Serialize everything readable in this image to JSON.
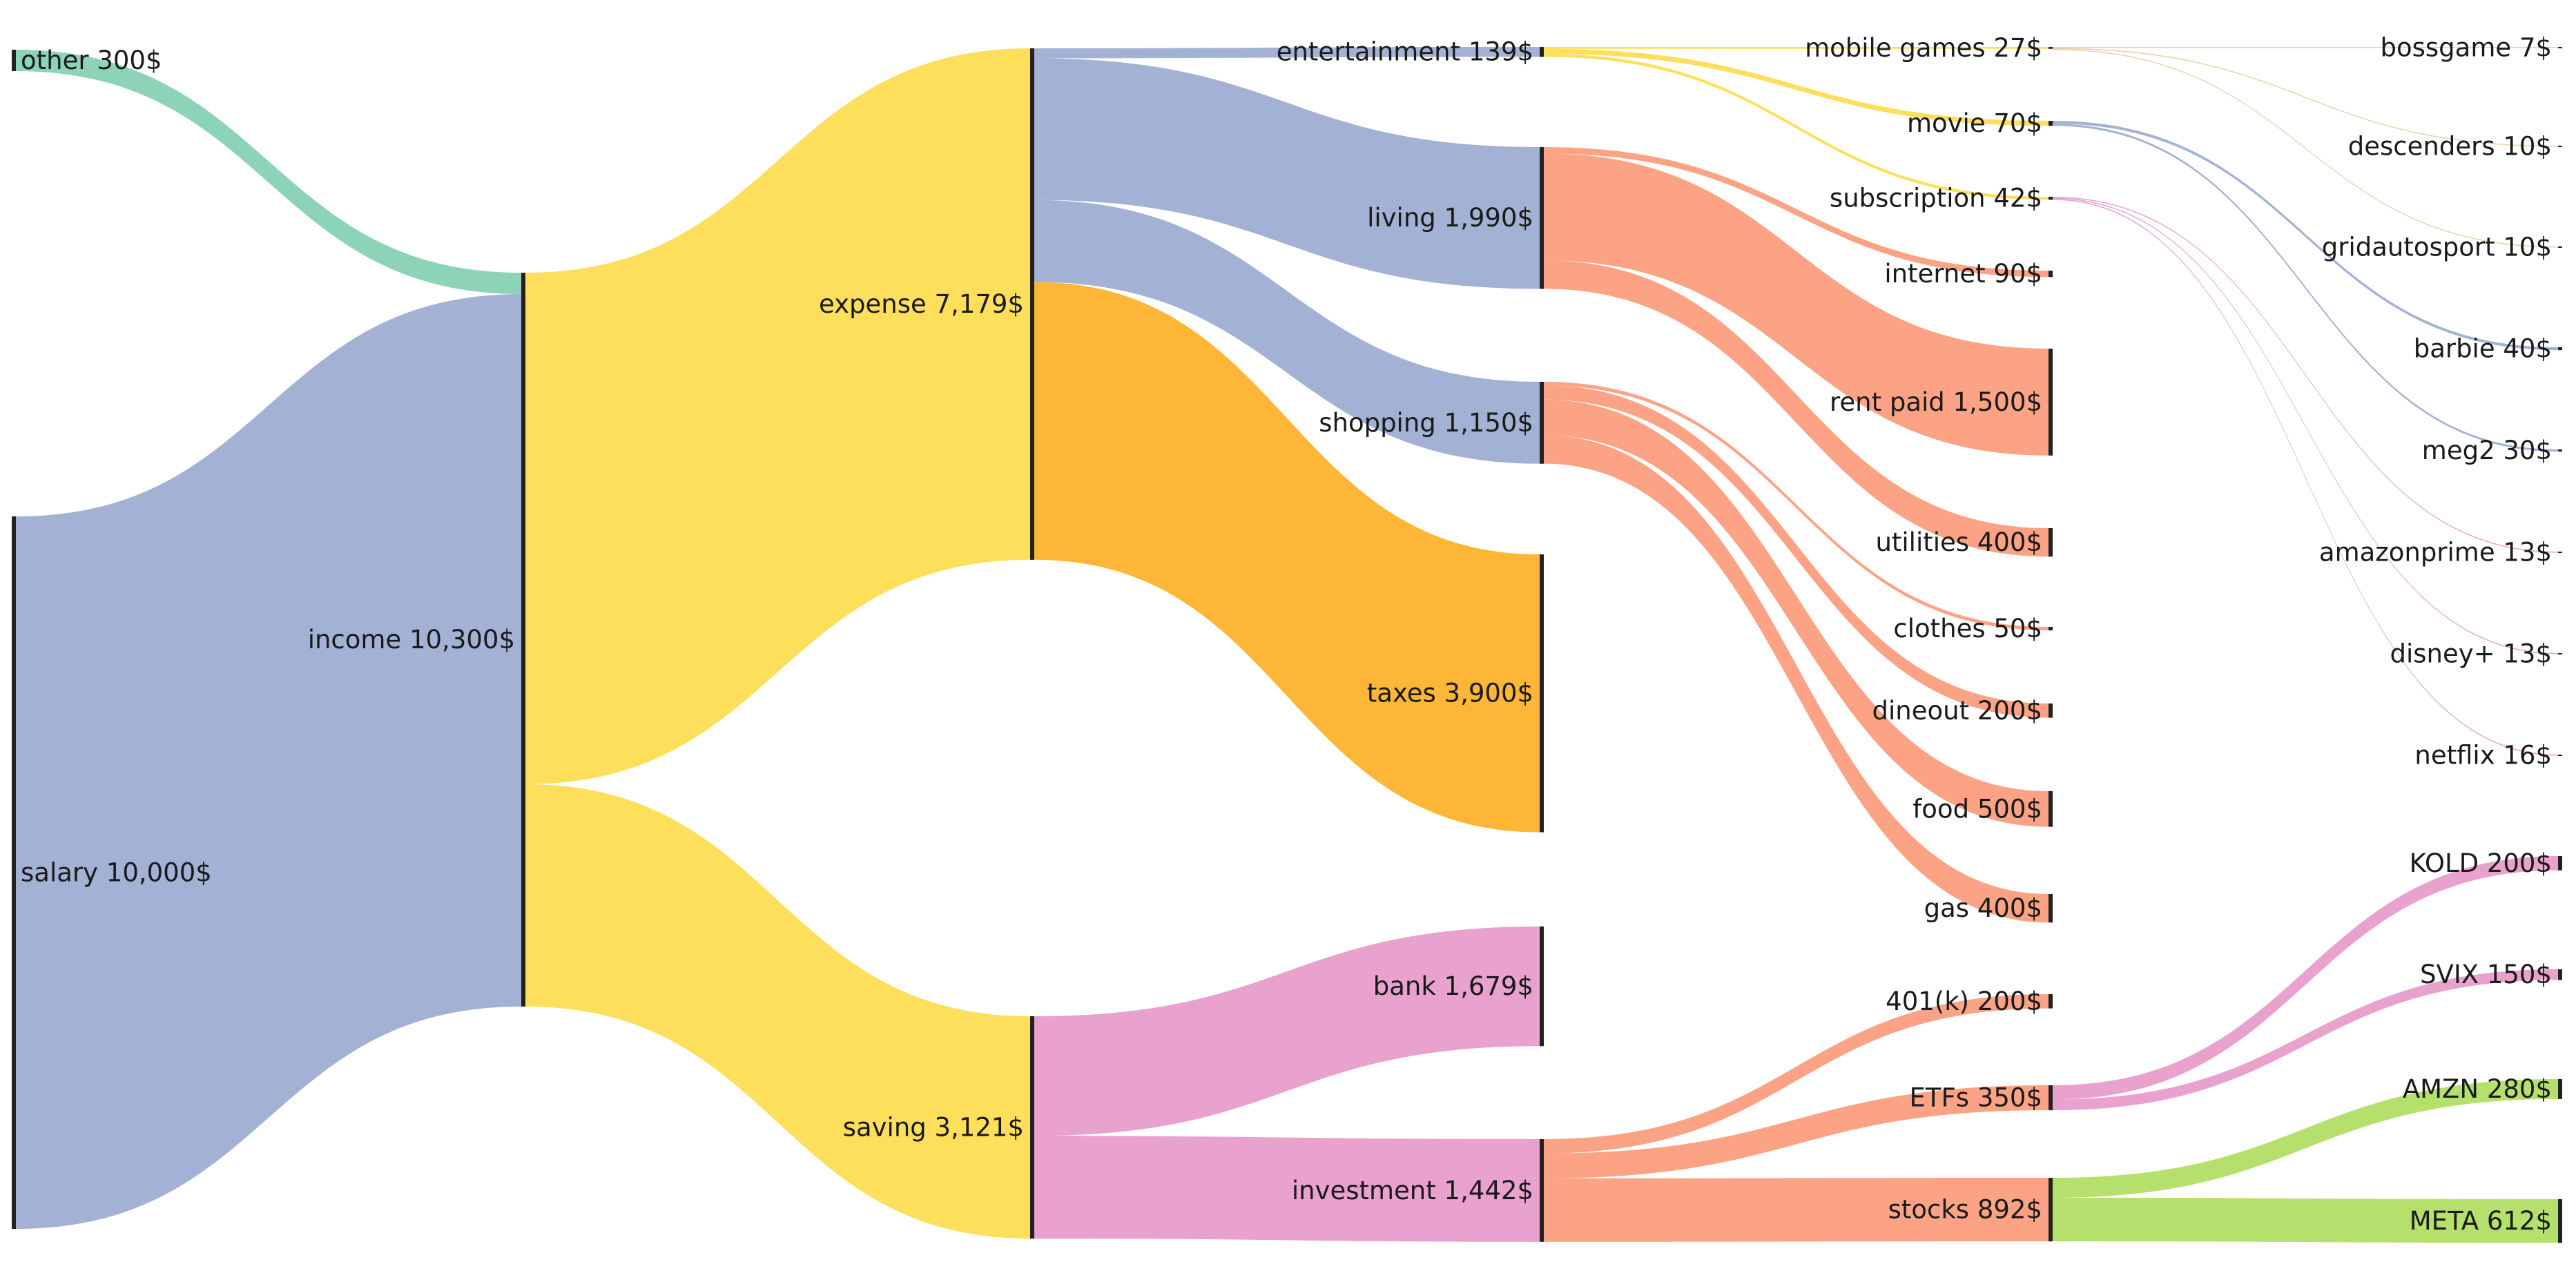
{
  "chart_data": {
    "type": "sankey",
    "unit": "$",
    "nodes": [
      {
        "id": "other",
        "label": "other 300$",
        "value": 300,
        "color": "#8dd3b8"
      },
      {
        "id": "salary",
        "label": "salary 10,000$",
        "value": 10000,
        "color": "#a3b1d4"
      },
      {
        "id": "income",
        "label": "income 10,300$",
        "value": 10300,
        "color": "#a3b1d4"
      },
      {
        "id": "expense",
        "label": "expense 7,179$",
        "value": 7179,
        "color": "#fddf5c"
      },
      {
        "id": "saving",
        "label": "saving 3,121$",
        "value": 3121,
        "color": "#fddf5c"
      },
      {
        "id": "entertainment",
        "label": "entertainment 139$",
        "value": 139,
        "color": "#a3b1d4"
      },
      {
        "id": "living",
        "label": "living 1,990$",
        "value": 1990,
        "color": "#a3b1d4"
      },
      {
        "id": "shopping",
        "label": "shopping 1,150$",
        "value": 1150,
        "color": "#a3b1d4"
      },
      {
        "id": "taxes",
        "label": "taxes 3,900$",
        "value": 3900,
        "color": "#fdb636"
      },
      {
        "id": "bank",
        "label": "bank 1,679$",
        "value": 1679,
        "color": "#e9a1ce"
      },
      {
        "id": "investment",
        "label": "investment 1,442$",
        "value": 1442,
        "color": "#e9a1ce"
      },
      {
        "id": "mobile_games",
        "label": "mobile games 27$",
        "value": 27,
        "color": "#fddf5c"
      },
      {
        "id": "movie",
        "label": "movie 70$",
        "value": 70,
        "color": "#fddf5c"
      },
      {
        "id": "subscription",
        "label": "subscription 42$",
        "value": 42,
        "color": "#fddf5c"
      },
      {
        "id": "internet",
        "label": "internet 90$",
        "value": 90,
        "color": "#fba384"
      },
      {
        "id": "rent_paid",
        "label": "rent paid 1,500$",
        "value": 1500,
        "color": "#fba384"
      },
      {
        "id": "utilities",
        "label": "utilities 400$",
        "value": 400,
        "color": "#fba384"
      },
      {
        "id": "clothes",
        "label": "clothes 50$",
        "value": 50,
        "color": "#fba384"
      },
      {
        "id": "dineout",
        "label": "dineout 200$",
        "value": 200,
        "color": "#fba384"
      },
      {
        "id": "food",
        "label": "food 500$",
        "value": 500,
        "color": "#fba384"
      },
      {
        "id": "gas",
        "label": "gas 400$",
        "value": 400,
        "color": "#fba384"
      },
      {
        "id": "k401",
        "label": "401(k) 200$",
        "value": 200,
        "color": "#fba384"
      },
      {
        "id": "etfs",
        "label": "ETFs 350$",
        "value": 350,
        "color": "#fba384"
      },
      {
        "id": "stocks",
        "label": "stocks 892$",
        "value": 892,
        "color": "#fba384"
      },
      {
        "id": "bossgame",
        "label": "bossgame 7$",
        "value": 7,
        "color": "#e7d1a8"
      },
      {
        "id": "descenders",
        "label": "descenders 10$",
        "value": 10,
        "color": "#e7d1a8"
      },
      {
        "id": "gridautosport",
        "label": "gridautosport 10$",
        "value": 10,
        "color": "#e7d1a8"
      },
      {
        "id": "barbie",
        "label": "barbie 40$",
        "value": 40,
        "color": "#a3b1d4"
      },
      {
        "id": "meg2",
        "label": "meg2 30$",
        "value": 30,
        "color": "#a3b1d4"
      },
      {
        "id": "amazonprime",
        "label": "amazonprime 13$",
        "value": 13,
        "color": "#e9a1ce"
      },
      {
        "id": "disney",
        "label": "disney+ 13$",
        "value": 13,
        "color": "#e9a1ce"
      },
      {
        "id": "netflix",
        "label": "netflix 16$",
        "value": 16,
        "color": "#e9a1ce"
      },
      {
        "id": "kold",
        "label": "KOLD 200$",
        "value": 200,
        "color": "#e9a1ce"
      },
      {
        "id": "svix",
        "label": "SVIX 150$",
        "value": 150,
        "color": "#e9a1ce"
      },
      {
        "id": "amzn",
        "label": "AMZN 280$",
        "value": 280,
        "color": "#b6e06c"
      },
      {
        "id": "meta",
        "label": "META 612$",
        "value": 612,
        "color": "#b6e06c"
      }
    ],
    "links": [
      {
        "source": "other",
        "target": "income",
        "value": 300,
        "color": "#8dd3b8"
      },
      {
        "source": "salary",
        "target": "income",
        "value": 10000,
        "color": "#a3b1d4"
      },
      {
        "source": "income",
        "target": "expense",
        "value": 7179,
        "color": "#fddf5c"
      },
      {
        "source": "income",
        "target": "saving",
        "value": 3121,
        "color": "#fddf5c"
      },
      {
        "source": "expense",
        "target": "entertainment",
        "value": 139,
        "color": "#a3b1d4"
      },
      {
        "source": "expense",
        "target": "living",
        "value": 1990,
        "color": "#a3b1d4"
      },
      {
        "source": "expense",
        "target": "shopping",
        "value": 1150,
        "color": "#a3b1d4"
      },
      {
        "source": "expense",
        "target": "taxes",
        "value": 3900,
        "color": "#fdb636"
      },
      {
        "source": "saving",
        "target": "bank",
        "value": 1679,
        "color": "#e9a1ce"
      },
      {
        "source": "saving",
        "target": "investment",
        "value": 1442,
        "color": "#e9a1ce"
      },
      {
        "source": "entertainment",
        "target": "mobile_games",
        "value": 27,
        "color": "#fddf5c"
      },
      {
        "source": "entertainment",
        "target": "movie",
        "value": 70,
        "color": "#fddf5c"
      },
      {
        "source": "entertainment",
        "target": "subscription",
        "value": 42,
        "color": "#fddf5c"
      },
      {
        "source": "living",
        "target": "internet",
        "value": 90,
        "color": "#fba384"
      },
      {
        "source": "living",
        "target": "rent_paid",
        "value": 1500,
        "color": "#fba384"
      },
      {
        "source": "living",
        "target": "utilities",
        "value": 400,
        "color": "#fba384"
      },
      {
        "source": "shopping",
        "target": "clothes",
        "value": 50,
        "color": "#fba384"
      },
      {
        "source": "shopping",
        "target": "dineout",
        "value": 200,
        "color": "#fba384"
      },
      {
        "source": "shopping",
        "target": "food",
        "value": 500,
        "color": "#fba384"
      },
      {
        "source": "shopping",
        "target": "gas",
        "value": 400,
        "color": "#fba384"
      },
      {
        "source": "investment",
        "target": "k401",
        "value": 200,
        "color": "#fba384"
      },
      {
        "source": "investment",
        "target": "etfs",
        "value": 350,
        "color": "#fba384"
      },
      {
        "source": "investment",
        "target": "stocks",
        "value": 892,
        "color": "#fba384"
      },
      {
        "source": "mobile_games",
        "target": "bossgame",
        "value": 7,
        "color": "#e7d1a8"
      },
      {
        "source": "mobile_games",
        "target": "descenders",
        "value": 10,
        "color": "#e7d1a8"
      },
      {
        "source": "mobile_games",
        "target": "gridautosport",
        "value": 10,
        "color": "#e7d1a8"
      },
      {
        "source": "movie",
        "target": "barbie",
        "value": 40,
        "color": "#a3b1d4"
      },
      {
        "source": "movie",
        "target": "meg2",
        "value": 30,
        "color": "#a3b1d4"
      },
      {
        "source": "subscription",
        "target": "amazonprime",
        "value": 13,
        "color": "#e9a1ce"
      },
      {
        "source": "subscription",
        "target": "disney",
        "value": 13,
        "color": "#e9a1ce"
      },
      {
        "source": "subscription",
        "target": "netflix",
        "value": 16,
        "color": "#e9a1ce"
      },
      {
        "source": "etfs",
        "target": "kold",
        "value": 200,
        "color": "#e9a1ce"
      },
      {
        "source": "etfs",
        "target": "svix",
        "value": 150,
        "color": "#e9a1ce"
      },
      {
        "source": "stocks",
        "target": "amzn",
        "value": 280,
        "color": "#b6e06c"
      },
      {
        "source": "stocks",
        "target": "meta",
        "value": 612,
        "color": "#b6e06c"
      }
    ]
  }
}
